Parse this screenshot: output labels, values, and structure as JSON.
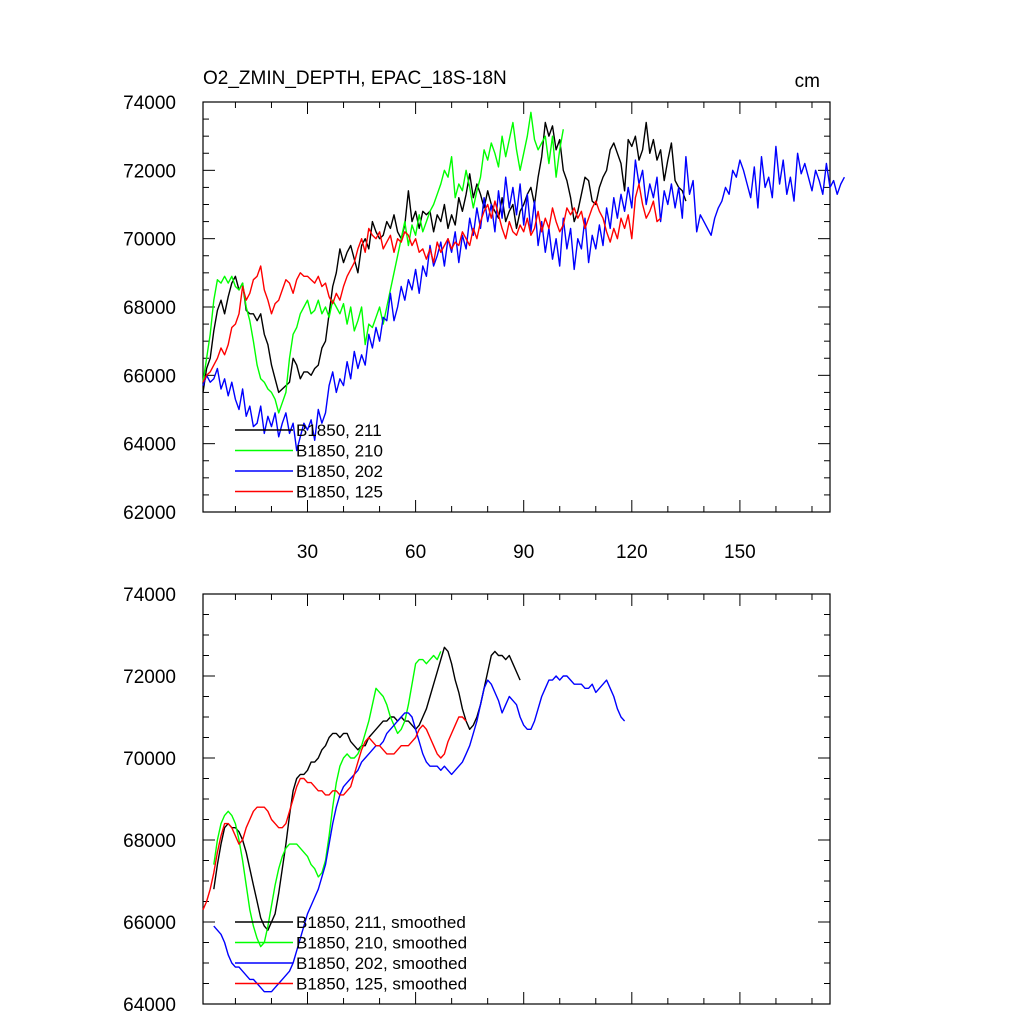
{
  "chart_data": [
    {
      "type": "line",
      "title": "O2_ZMIN_DEPTH, EPAC_18S-18N",
      "units": "cm",
      "xlabel": "",
      "ylabel": "",
      "xlim": [
        1,
        175
      ],
      "ylim": [
        62000,
        74000
      ],
      "x_ticks": [
        30,
        60,
        90,
        120,
        150
      ],
      "y_ticks": [
        62000,
        64000,
        66000,
        68000,
        70000,
        72000,
        74000
      ],
      "x_tick_labels": [
        "30",
        "60",
        "90",
        "120",
        "150"
      ],
      "y_tick_labels": [
        "62000",
        "64000",
        "66000",
        "68000",
        "70000",
        "72000",
        "74000"
      ],
      "legend_position": "bottom-left",
      "series": [
        {
          "name": "B1850, 211",
          "color": "#000000",
          "x_start": 1,
          "values": [
            65500,
            66200,
            66500,
            67300,
            67900,
            68200,
            67800,
            68300,
            68700,
            68900,
            68500,
            68700,
            67900,
            67800,
            67800,
            67600,
            67800,
            67200,
            66900,
            66300,
            65900,
            65500,
            65600,
            65700,
            65800,
            66500,
            66300,
            65900,
            66100,
            66100,
            66000,
            66200,
            66300,
            66800,
            67000,
            67800,
            68600,
            69000,
            69700,
            69300,
            69600,
            69800,
            69400,
            69000,
            69800,
            70000,
            69700,
            70500,
            70200,
            70000,
            70100,
            70500,
            70300,
            70700,
            70200,
            70000,
            70400,
            71400,
            70500,
            70800,
            70300,
            70800,
            70700,
            70800,
            70200,
            70700,
            70500,
            71000,
            70300,
            70700,
            70400,
            71200,
            70800,
            71300,
            71900,
            71200,
            71600,
            71300,
            70900,
            71400,
            71000,
            70800,
            70600,
            71200,
            70500,
            70800,
            71000,
            70300,
            70800,
            71000,
            71300,
            71500,
            71000,
            71800,
            72400,
            73400,
            73000,
            73300,
            72600,
            72900,
            72000,
            71700,
            71200,
            70500,
            70800,
            71300,
            71800,
            71700,
            71100,
            71000,
            71500,
            71800,
            72000,
            72600,
            72800,
            72500,
            72200,
            71400,
            72900,
            72700,
            73000,
            72300,
            72600,
            73400,
            72500,
            72900,
            72300,
            72600,
            71700,
            72300,
            72800,
            71700,
            71500,
            71400,
            71100
          ]
        },
        {
          "name": "B1850, 210",
          "color": "#00ff00",
          "x_start": 1,
          "values": [
            65800,
            66500,
            67200,
            68200,
            68800,
            68700,
            68900,
            68700,
            68900,
            68600,
            68500,
            68700,
            68000,
            67600,
            67000,
            66300,
            65900,
            65800,
            65600,
            65500,
            65300,
            64900,
            65200,
            65500,
            66500,
            67200,
            67400,
            67800,
            68000,
            68200,
            67800,
            67900,
            68200,
            67800,
            68000,
            67700,
            68200,
            68000,
            67800,
            68100,
            67500,
            68000,
            67300,
            67600,
            68000,
            66900,
            67500,
            67400,
            67700,
            68000,
            67500,
            68000,
            68500,
            69000,
            69500,
            70000,
            70500,
            69800,
            70400,
            70100,
            70700,
            70200,
            70500,
            70800,
            71000,
            71300,
            71600,
            72000,
            71800,
            72400,
            71200,
            71600,
            71400,
            72000,
            71500,
            70900,
            71400,
            71800,
            72600,
            72300,
            72800,
            72500,
            72100,
            73000,
            72400,
            72900,
            73400,
            72600,
            72000,
            72500,
            73000,
            73700,
            72900,
            72600,
            72800,
            73000,
            72200,
            73000,
            71800,
            72600,
            73200
          ]
        },
        {
          "name": "B1850, 202",
          "color": "#0000ff",
          "x_start": 1,
          "values": [
            65700,
            66000,
            65800,
            65900,
            66200,
            65600,
            65900,
            65400,
            65800,
            65300,
            65000,
            65600,
            64800,
            65100,
            64500,
            64600,
            65100,
            64300,
            64800,
            64500,
            64900,
            64200,
            64600,
            64900,
            64300,
            64600,
            63800,
            64200,
            64600,
            64400,
            64700,
            64100,
            65000,
            64600,
            64900,
            65700,
            66100,
            65500,
            65900,
            65700,
            66400,
            65900,
            66700,
            66200,
            66600,
            66300,
            67200,
            66800,
            67400,
            67000,
            67700,
            67600,
            68400,
            67600,
            68000,
            68600,
            68200,
            68800,
            68500,
            69100,
            68400,
            69200,
            68900,
            69800,
            69200,
            69500,
            69900,
            69200,
            70000,
            69600,
            70200,
            69300,
            70100,
            69700,
            70600,
            70100,
            70900,
            70300,
            71200,
            70500,
            71000,
            70200,
            71400,
            70600,
            71800,
            70900,
            71500,
            70700,
            71600,
            70400,
            71300,
            70200,
            71100,
            69800,
            70500,
            69600,
            70300,
            69400,
            70000,
            69200,
            70600,
            69700,
            70300,
            69100,
            70000,
            69700,
            70600,
            69300,
            70100,
            69700,
            70400,
            69800,
            70900,
            70300,
            71200,
            70600,
            71300,
            70800,
            71500,
            70900,
            72300,
            71600,
            72000,
            71000,
            71600,
            71200,
            71800,
            70500,
            71400,
            71000,
            71600,
            70900,
            71500,
            70600,
            72400,
            71300,
            71700,
            70200,
            70700,
            70500,
            70300,
            70100,
            70600,
            70900,
            71100,
            71500,
            71300,
            72000,
            71800,
            72300,
            72000,
            71600,
            71200,
            72100,
            70900,
            72400,
            71500,
            71800,
            71200,
            72700,
            71600,
            72300,
            71300,
            71800,
            71100,
            72500,
            71900,
            72200,
            71800,
            71400,
            72000,
            71700,
            71300,
            72200,
            71500,
            71700,
            71300,
            71600,
            71800
          ]
        },
        {
          "name": "B1850, 125",
          "color": "#ff0000",
          "x_start": 1,
          "values": [
            65800,
            66000,
            66100,
            66300,
            66500,
            66800,
            66600,
            66900,
            67400,
            67500,
            67800,
            68600,
            68200,
            68400,
            68800,
            68900,
            69200,
            68500,
            68200,
            67800,
            68100,
            68200,
            68500,
            68800,
            68700,
            68400,
            68800,
            69000,
            68900,
            68900,
            68800,
            68700,
            68900,
            68600,
            68700,
            68300,
            68100,
            68400,
            68200,
            68600,
            68900,
            69100,
            69300,
            69700,
            70000,
            69600,
            70300,
            70100,
            70000,
            70200,
            69700,
            69900,
            70100,
            69600,
            70000,
            69900,
            70200,
            70100,
            69800,
            70000,
            69600,
            69700,
            69400,
            69700,
            69300,
            69900,
            69600,
            69800,
            70000,
            69700,
            69900,
            69800,
            70200,
            70000,
            69800,
            70300,
            70000,
            70500,
            70800,
            71000,
            70600,
            71100,
            70700,
            70300,
            70000,
            70500,
            70200,
            70100,
            70400,
            70200,
            70600,
            70100,
            70300,
            70800,
            70200,
            70600,
            70300,
            70900,
            70500,
            70200,
            70400,
            70900,
            70700,
            70900,
            70600,
            70800,
            70300,
            70600,
            70900,
            71100,
            70800,
            70600,
            70200,
            69900,
            70300,
            70000,
            70600,
            70300,
            70700,
            70000,
            71200,
            71600,
            71000,
            70600,
            70800,
            71100,
            70500,
            70600
          ]
        }
      ]
    },
    {
      "type": "line",
      "title": "",
      "xlabel": "",
      "ylabel": "",
      "xlim": [
        1,
        175
      ],
      "ylim": [
        64000,
        74000
      ],
      "x_ticks": [
        30,
        60,
        90,
        120,
        150
      ],
      "y_ticks": [
        64000,
        66000,
        68000,
        70000,
        72000,
        74000
      ],
      "y_tick_labels": [
        "64000",
        "66000",
        "68000",
        "70000",
        "72000",
        "74000"
      ],
      "legend_position": "bottom-left",
      "series": [
        {
          "name": "B1850, 211, smoothed",
          "color": "#000000",
          "x_start": 4,
          "values": [
            66800,
            67400,
            67900,
            68300,
            68400,
            68300,
            68300,
            68200,
            68000,
            67700,
            67300,
            66900,
            66500,
            66100,
            65900,
            65800,
            66000,
            66200,
            66700,
            67300,
            67900,
            68600,
            69200,
            69500,
            69600,
            69600,
            69700,
            69900,
            69900,
            70000,
            70200,
            70300,
            70500,
            70600,
            70600,
            70500,
            70600,
            70600,
            70400,
            70300,
            70200,
            70300,
            70300,
            70500,
            70600,
            70700,
            70800,
            70900,
            70900,
            71000,
            71000,
            70900,
            71000,
            70900,
            70900,
            70800,
            70700,
            70800,
            71000,
            71200,
            71500,
            71800,
            72100,
            72400,
            72700,
            72600,
            72300,
            71900,
            71600,
            71200,
            70900,
            70700,
            70800,
            71000,
            71300,
            71700,
            72100,
            72500,
            72600,
            72500,
            72500,
            72400,
            72500,
            72300,
            72100,
            71900
          ]
        },
        {
          "name": "B1850, 210, smoothed",
          "color": "#00ff00",
          "x_start": 4,
          "values": [
            67400,
            68000,
            68400,
            68600,
            68700,
            68600,
            68400,
            68000,
            67500,
            66900,
            66300,
            65900,
            65600,
            65400,
            65500,
            65900,
            66400,
            66900,
            67300,
            67600,
            67800,
            67900,
            67900,
            67900,
            67800,
            67700,
            67600,
            67400,
            67300,
            67100,
            67200,
            67500,
            68100,
            68800,
            69400,
            69800,
            70000,
            70100,
            70000,
            70000,
            70100,
            70300,
            70600,
            70900,
            71300,
            71700,
            71600,
            71500,
            71300,
            71000,
            70800,
            70600,
            70700,
            70900,
            71300,
            71800,
            72300,
            72400,
            72400,
            72300,
            72400,
            72500,
            72400,
            72600
          ]
        },
        {
          "name": "B1850, 202, smoothed",
          "color": "#0000ff",
          "x_start": 4,
          "values": [
            65900,
            65800,
            65700,
            65500,
            65200,
            65000,
            64900,
            64900,
            64800,
            64700,
            64600,
            64600,
            64500,
            64400,
            64300,
            64300,
            64300,
            64400,
            64500,
            64600,
            64700,
            64800,
            65000,
            65300,
            65600,
            65900,
            66200,
            66400,
            66600,
            66800,
            67100,
            67400,
            67900,
            68400,
            68800,
            69100,
            69300,
            69400,
            69500,
            69600,
            69700,
            69900,
            70000,
            70100,
            70200,
            70300,
            70300,
            70400,
            70600,
            70700,
            70800,
            70900,
            71000,
            71100,
            71100,
            71000,
            70700,
            70400,
            70100,
            69900,
            69800,
            69800,
            69800,
            69700,
            69800,
            69700,
            69600,
            69700,
            69800,
            69900,
            70100,
            70300,
            70600,
            70900,
            71300,
            71700,
            71900,
            71800,
            71600,
            71400,
            71100,
            71300,
            71500,
            71400,
            71300,
            71000,
            70800,
            70700,
            70700,
            70900,
            71200,
            71500,
            71700,
            71900,
            71900,
            72000,
            71900,
            72000,
            72000,
            71900,
            71800,
            71800,
            71800,
            71700,
            71700,
            71800,
            71600,
            71700,
            71800,
            71900,
            71700,
            71500,
            71200,
            71000,
            70900
          ]
        },
        {
          "name": "B1850, 125, smoothed",
          "color": "#ff0000",
          "x_start": 1,
          "values": [
            66300,
            66500,
            66800,
            67200,
            67700,
            68100,
            68400,
            68400,
            68300,
            68100,
            67900,
            68000,
            68300,
            68500,
            68700,
            68800,
            68800,
            68800,
            68700,
            68500,
            68400,
            68300,
            68300,
            68400,
            68700,
            69000,
            69300,
            69500,
            69500,
            69400,
            69400,
            69300,
            69200,
            69200,
            69100,
            69100,
            69200,
            69200,
            69100,
            69100,
            69200,
            69300,
            69600,
            69900,
            70200,
            70400,
            70500,
            70400,
            70300,
            70300,
            70200,
            70100,
            70100,
            70100,
            70200,
            70300,
            70300,
            70300,
            70400,
            70500,
            70700,
            70800,
            70700,
            70500,
            70300,
            70100,
            70000,
            70100,
            70400,
            70600,
            70800,
            71000,
            71000,
            70900
          ]
        }
      ]
    }
  ]
}
